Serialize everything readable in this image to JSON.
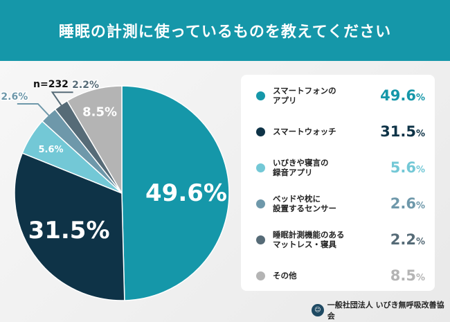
{
  "title": "睡眠の計測に使っているものを教えてください",
  "sample": "n=232",
  "organization": "一般社団法人 いびき無呼吸改善協会",
  "colors": {
    "header": "#1597a9"
  },
  "chart_data": {
    "type": "pie",
    "title": "睡眠の計測に使っているものを教えてください",
    "categories": [
      "スマートフォンのアプリ",
      "スマートウォッチ",
      "いびきや寝言の録音アプリ",
      "ベッドや枕に設置するセンサー",
      "睡眠計測機能のあるマットレス・寝具",
      "その他"
    ],
    "values": [
      49.6,
      31.5,
      5.6,
      2.6,
      2.2,
      8.5
    ],
    "labels": [
      "49.6%",
      "31.5%",
      "5.6%",
      "2.6%",
      "2.2%",
      "8.5%"
    ],
    "colors": [
      "#1597a9",
      "#0e3347",
      "#73c8d6",
      "#6e98aa",
      "#566b77",
      "#b4b4b4"
    ],
    "legend_placement": "right"
  },
  "legend": [
    {
      "label": "スマートフォンの\nアプリ",
      "value": "49.6",
      "unit": "%"
    },
    {
      "label": "スマートウォッチ",
      "value": "31.5",
      "unit": "%"
    },
    {
      "label": "いびきや寝言の\n録音アプリ",
      "value": "5.6",
      "unit": "%"
    },
    {
      "label": "ベッドや枕に\n設置するセンサー",
      "value": "2.6",
      "unit": "%"
    },
    {
      "label": "睡眠計測機能のある\nマットレス・寝具",
      "value": "2.2",
      "unit": "%"
    },
    {
      "label": "その他",
      "value": "8.5",
      "unit": "%"
    }
  ]
}
